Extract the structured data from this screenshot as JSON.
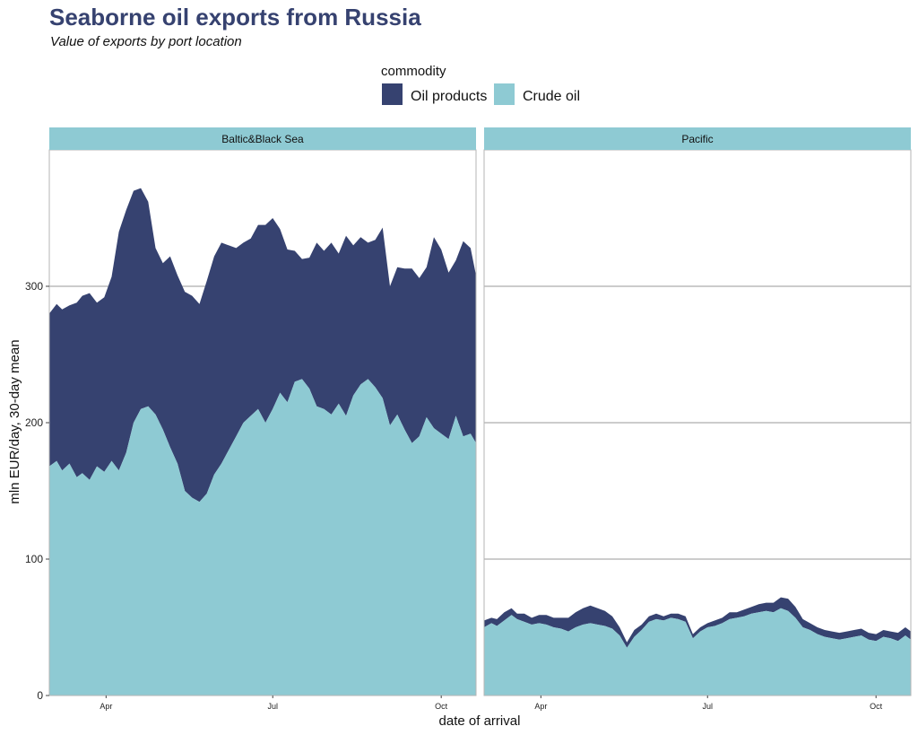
{
  "title": "Seaborne oil exports from Russia",
  "subtitle": "Value of exports by port location",
  "chart_data": {
    "type": "area",
    "stacked": true,
    "title": "Seaborne oil exports from Russia",
    "subtitle": "Value of exports by port location",
    "xlabel": "date of arrival",
    "ylabel": "mln EUR/day, 30-day mean",
    "ylim": [
      0,
      400
    ],
    "y_ticks": [
      0,
      100,
      200,
      300
    ],
    "x_ticks": [
      "Apr",
      "Jul",
      "Oct"
    ],
    "x_tick_dates": [
      "2022-04-01",
      "2022-07-01",
      "2022-10-01"
    ],
    "x_range": [
      "2022-03-01",
      "2022-10-20"
    ],
    "grid": true,
    "legend": {
      "title": "commodity",
      "position": "top",
      "entries": [
        "Oil products",
        "Crude oil"
      ]
    },
    "colors": {
      "Oil products": "#364270",
      "Crude oil": "#8ECAD3",
      "strip": "#8ECAD3",
      "title": "#364270"
    },
    "x": [
      "2022-03-01",
      "2022-03-05",
      "2022-03-08",
      "2022-03-12",
      "2022-03-16",
      "2022-03-19",
      "2022-03-23",
      "2022-03-27",
      "2022-03-31",
      "2022-04-04",
      "2022-04-08",
      "2022-04-12",
      "2022-04-16",
      "2022-04-20",
      "2022-04-24",
      "2022-04-28",
      "2022-05-02",
      "2022-05-06",
      "2022-05-10",
      "2022-05-14",
      "2022-05-18",
      "2022-05-22",
      "2022-05-26",
      "2022-05-30",
      "2022-06-03",
      "2022-06-07",
      "2022-06-11",
      "2022-06-15",
      "2022-06-19",
      "2022-06-23",
      "2022-06-27",
      "2022-07-01",
      "2022-07-05",
      "2022-07-09",
      "2022-07-13",
      "2022-07-17",
      "2022-07-21",
      "2022-07-25",
      "2022-07-29",
      "2022-08-02",
      "2022-08-06",
      "2022-08-10",
      "2022-08-14",
      "2022-08-18",
      "2022-08-22",
      "2022-08-26",
      "2022-08-30",
      "2022-09-03",
      "2022-09-07",
      "2022-09-11",
      "2022-09-15",
      "2022-09-19",
      "2022-09-23",
      "2022-09-27",
      "2022-10-01",
      "2022-10-05",
      "2022-10-09",
      "2022-10-13",
      "2022-10-17",
      "2022-10-20"
    ],
    "panels": [
      {
        "name": "Baltic&Black Sea",
        "series": [
          {
            "name": "Crude oil",
            "values": [
              168,
              172,
              165,
              170,
              160,
              163,
              158,
              168,
              164,
              172,
              165,
              178,
              200,
              210,
              212,
              206,
              195,
              182,
              170,
              150,
              145,
              142,
              148,
              162,
              170,
              180,
              190,
              200,
              205,
              210,
              200,
              210,
              222,
              215,
              230,
              232,
              225,
              212,
              210,
              206,
              214,
              205,
              220,
              228,
              232,
              226,
              218,
              198,
              206,
              195,
              185,
              190,
              204,
              196,
              192,
              188,
              205,
              190,
              192,
              185
            ]
          },
          {
            "name": "Oil products",
            "values": [
              112,
              115,
              118,
              116,
              128,
              130,
              137,
              120,
              128,
              135,
              175,
              178,
              170,
              162,
              150,
              122,
              122,
              140,
              138,
              146,
              148,
              145,
              156,
              160,
              162,
              150,
              138,
              132,
              130,
              135,
              145,
              140,
              120,
              112,
              96,
              88,
              96,
              120,
              116,
              126,
              110,
              132,
              110,
              108,
              100,
              108,
              125,
              102,
              108,
              118,
              128,
              116,
              110,
              140,
              135,
              122,
              114,
              143,
              136,
              123
            ]
          }
        ]
      },
      {
        "name": "Pacific",
        "series": [
          {
            "name": "Crude oil",
            "values": [
              50,
              53,
              51,
              55,
              59,
              56,
              54,
              52,
              53,
              52,
              50,
              49,
              47,
              50,
              52,
              53,
              52,
              51,
              49,
              44,
              35,
              43,
              48,
              54,
              56,
              55,
              57,
              56,
              54,
              42,
              47,
              50,
              51,
              53,
              56,
              57,
              58,
              60,
              61,
              62,
              61,
              64,
              62,
              57,
              50,
              48,
              45,
              43,
              42,
              41,
              42,
              43,
              44,
              41,
              40,
              43,
              42,
              40,
              44,
              41
            ]
          },
          {
            "name": "Oil products",
            "values": [
              5,
              4,
              5,
              6,
              5,
              4,
              6,
              5,
              6,
              7,
              7,
              8,
              10,
              11,
              12,
              13,
              12,
              11,
              9,
              6,
              4,
              5,
              4,
              4,
              4,
              3,
              3,
              4,
              4,
              3,
              3,
              3,
              4,
              4,
              5,
              4,
              5,
              5,
              6,
              6,
              7,
              8,
              9,
              8,
              6,
              5,
              5,
              5,
              5,
              5,
              5,
              5,
              5,
              5,
              5,
              5,
              5,
              6,
              6,
              6
            ]
          }
        ]
      }
    ]
  }
}
